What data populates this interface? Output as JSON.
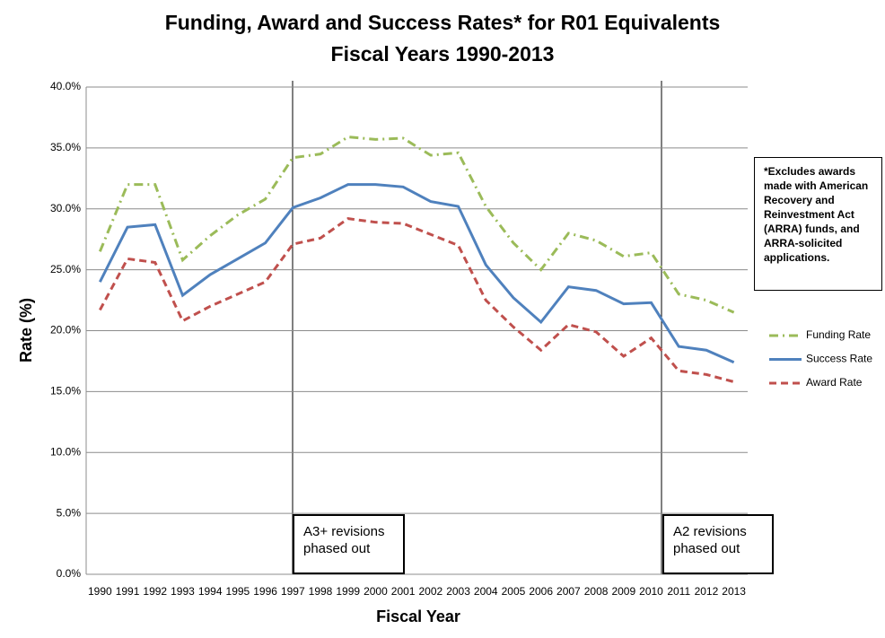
{
  "chart_data": {
    "type": "line",
    "title": "Funding, Award and Success Rates* for R01 Equivalents",
    "subtitle": "Fiscal Years 1990-2013",
    "x_label": "Fiscal Year",
    "y_label": "Rate (%)",
    "categories": [
      "1990",
      "1991",
      "1992",
      "1993",
      "1994",
      "1995",
      "1996",
      "1997",
      "1998",
      "1999",
      "2000",
      "2001",
      "2002",
      "2003",
      "2004",
      "2005",
      "2006",
      "2007",
      "2008",
      "2009",
      "2010",
      "2011",
      "2012",
      "2013"
    ],
    "series": [
      {
        "name": "Funding Rate",
        "color": "#9bbb59",
        "style": "dash-dot",
        "values": [
          26.5,
          32.0,
          32.0,
          25.8,
          27.8,
          29.5,
          30.8,
          34.2,
          34.5,
          35.9,
          35.7,
          35.8,
          34.4,
          34.6,
          30.2,
          27.2,
          25.0,
          28.0,
          27.4,
          26.1,
          26.4,
          23.0,
          22.5,
          21.5
        ]
      },
      {
        "name": "Success Rate",
        "color": "#4f81bd",
        "style": "solid",
        "values": [
          24.0,
          28.5,
          28.7,
          22.9,
          24.6,
          25.9,
          27.2,
          30.1,
          30.9,
          32.0,
          32.0,
          31.8,
          30.6,
          30.2,
          25.4,
          22.7,
          20.7,
          23.6,
          23.3,
          22.2,
          22.3,
          18.7,
          18.4,
          17.4
        ]
      },
      {
        "name": "Award Rate",
        "color": "#c0504d",
        "style": "dash",
        "values": [
          21.7,
          25.9,
          25.6,
          20.8,
          22.0,
          23.0,
          24.0,
          27.1,
          27.6,
          29.2,
          28.9,
          28.8,
          27.9,
          27.0,
          22.5,
          20.3,
          18.4,
          20.5,
          19.9,
          17.9,
          19.4,
          16.7,
          16.4,
          15.8
        ]
      }
    ],
    "ylim": [
      0,
      40
    ],
    "yticks": [
      {
        "value": 0,
        "label": "0.0%"
      },
      {
        "value": 5,
        "label": "5.0%"
      },
      {
        "value": 10,
        "label": "10.0%"
      },
      {
        "value": 15,
        "label": "15.0%"
      },
      {
        "value": 20,
        "label": "20.0%"
      },
      {
        "value": 25,
        "label": "25.0%"
      },
      {
        "value": 30,
        "label": "30.0%"
      },
      {
        "value": 35,
        "label": "35.0%"
      },
      {
        "value": 40,
        "label": "40.0%"
      }
    ],
    "grid": true,
    "legend": "right",
    "annotations": [
      "A3+ revisions phased out",
      "A2 revisions phased out",
      "*Excludes awards made with American Recovery and Reinvestment Act  (ARRA) funds, and ARRA-solicited applications."
    ]
  }
}
